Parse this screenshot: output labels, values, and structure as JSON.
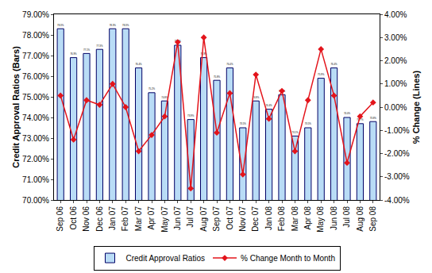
{
  "chart_data": {
    "type": "bar",
    "categories": [
      "Sep 06",
      "Oct 06",
      "Nov 06",
      "Dec 06",
      "Jan 07",
      "Feb 07",
      "Mar 07",
      "Apr 07",
      "May 07",
      "Jun 07",
      "Jul 07",
      "Aug 07",
      "Sep 07",
      "Oct 07",
      "Nov 07",
      "Dec 07",
      "Jan 08",
      "Feb 08",
      "Mar 08",
      "Apr 08",
      "May 08",
      "Jun 08",
      "Jul 08",
      "Aug 08",
      "Sep 08"
    ],
    "y_label": "Credit Approval Ratios (Bars)",
    "y2_label": "% Change (Lines)",
    "series": [
      {
        "name": "Credit Approval Ratios",
        "type": "bar",
        "color": "#b9dcf6",
        "values": [
          78.3,
          76.9,
          77.1,
          77.3,
          78.3,
          78.3,
          76.4,
          75.2,
          74.8,
          77.5,
          73.9,
          76.9,
          75.8,
          76.4,
          73.5,
          74.8,
          74.4,
          75.1,
          73.1,
          73.5,
          75.9,
          76.4,
          74.0,
          73.7,
          73.8
        ],
        "value_labels": [
          "78.3%",
          "76.9%",
          "77.1%",
          "77.3%",
          "78.3%",
          "78.3%",
          "76.4%",
          "75.2%",
          "74.8%",
          "77.5%",
          "73.9%",
          "76.9%",
          "75.8%",
          "76.4%",
          "73.5%",
          "74.8%",
          "74.4%",
          "75.1%",
          "73.1%",
          "73.5%",
          "75.9%",
          "76.4%",
          "74.0%",
          "73.7%",
          "73.8%"
        ]
      },
      {
        "name": "% Change Month to Month",
        "type": "line",
        "axis": "y2",
        "color": "#e3141b",
        "marker": "diamond",
        "values": [
          0.5,
          -1.4,
          0.3,
          0.1,
          1.0,
          0.0,
          -1.9,
          -1.2,
          -0.4,
          2.8,
          -3.5,
          3.0,
          -1.1,
          0.6,
          -2.9,
          1.4,
          -0.5,
          0.7,
          -1.9,
          0.3,
          2.5,
          0.5,
          -2.4,
          -0.4,
          0.2
        ]
      }
    ],
    "ylim": [
      70,
      79
    ],
    "yticks": [
      {
        "value": 70,
        "label": "70.00%"
      },
      {
        "value": 71,
        "label": "71.00%"
      },
      {
        "value": 72,
        "label": "72.00%"
      },
      {
        "value": 73,
        "label": "73.00%"
      },
      {
        "value": 74,
        "label": "74.00%"
      },
      {
        "value": 75,
        "label": "75.00%"
      },
      {
        "value": 76,
        "label": "76.00%"
      },
      {
        "value": 77,
        "label": "77.00%"
      },
      {
        "value": 78,
        "label": "78.00%"
      },
      {
        "value": 79,
        "label": "79.00%"
      }
    ],
    "y2lim": [
      -4,
      4
    ],
    "y2ticks": [
      {
        "value": -4,
        "label": "-4.00%"
      },
      {
        "value": -3,
        "label": "-3.00%"
      },
      {
        "value": -2,
        "label": "-2.00%"
      },
      {
        "value": -1,
        "label": "-1.00%"
      },
      {
        "value": 0,
        "label": "0.00%"
      },
      {
        "value": 1,
        "label": "1.00%"
      },
      {
        "value": 2,
        "label": "2.00%"
      },
      {
        "value": 3,
        "label": "3.00%"
      },
      {
        "value": 4,
        "label": "4.00%"
      }
    ],
    "grid": false,
    "legend": "bottom",
    "data_labels": true
  }
}
